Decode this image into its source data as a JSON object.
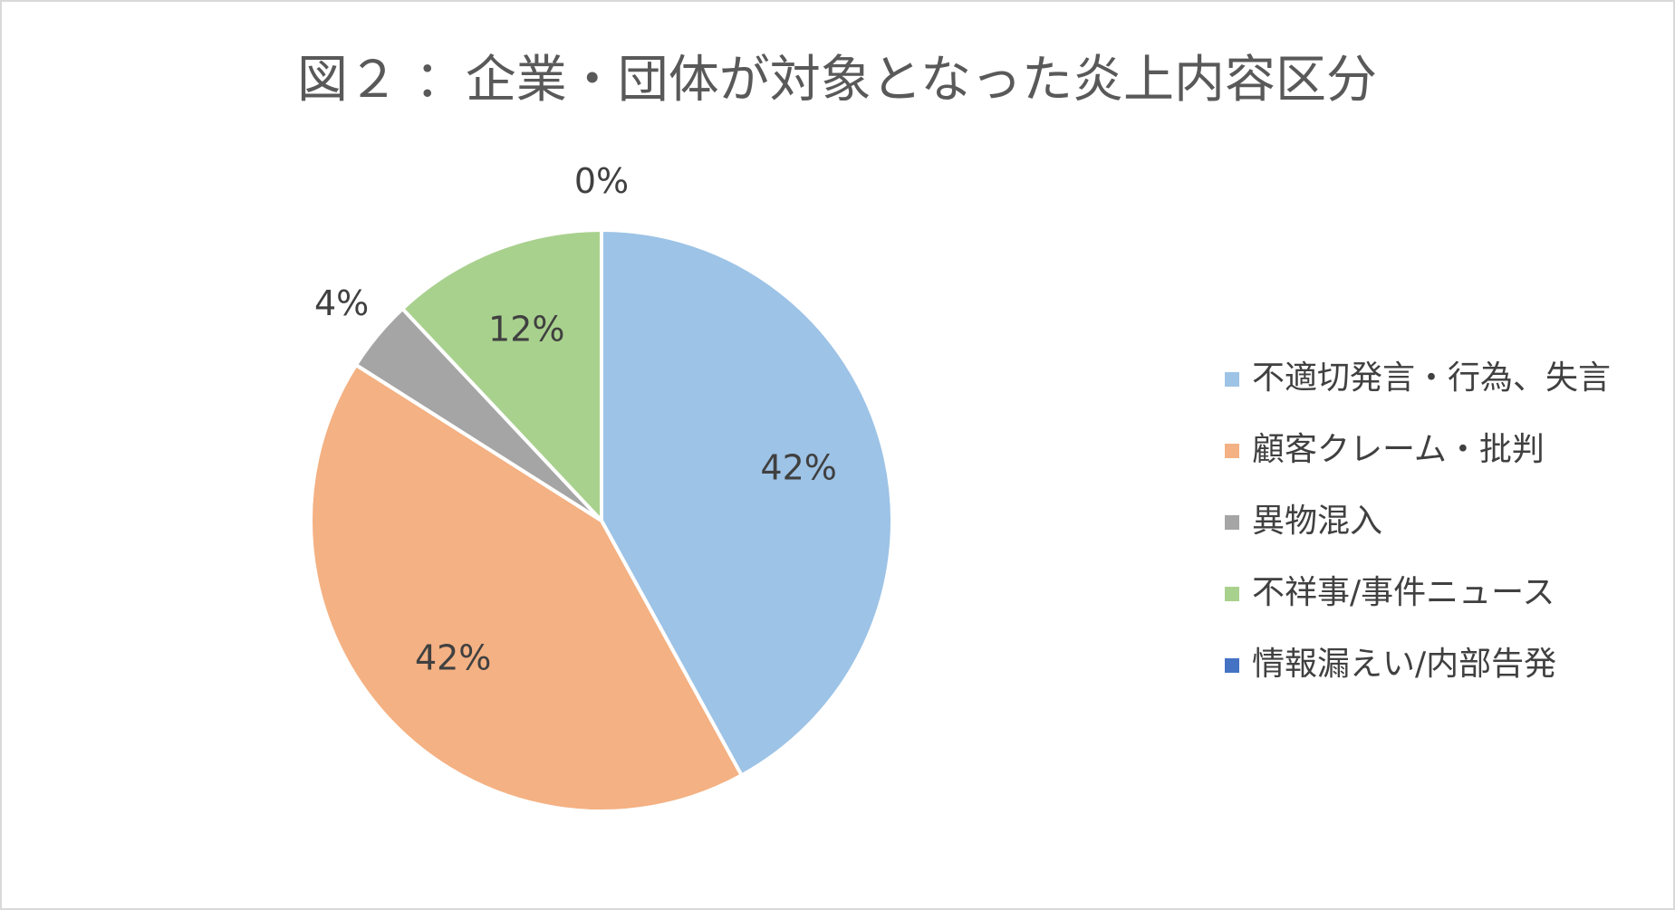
{
  "chart_data": {
    "type": "pie",
    "title": "図２ ：企業・団体が対象となった炎上内容区分",
    "categories": [
      "不適切発言・行為、失言",
      "顧客クレーム・批判",
      "異物混入",
      "不祥事/事件ニュース",
      "情報漏えい/内部告発"
    ],
    "values": [
      42,
      42,
      4,
      12,
      0
    ],
    "value_labels": [
      "42%",
      "42%",
      "4%",
      "12%",
      "0%"
    ],
    "colors": [
      "#9dc3e6",
      "#f4b183",
      "#a5a5a5",
      "#a9d18e",
      "#4472c4"
    ],
    "legend": "right"
  }
}
